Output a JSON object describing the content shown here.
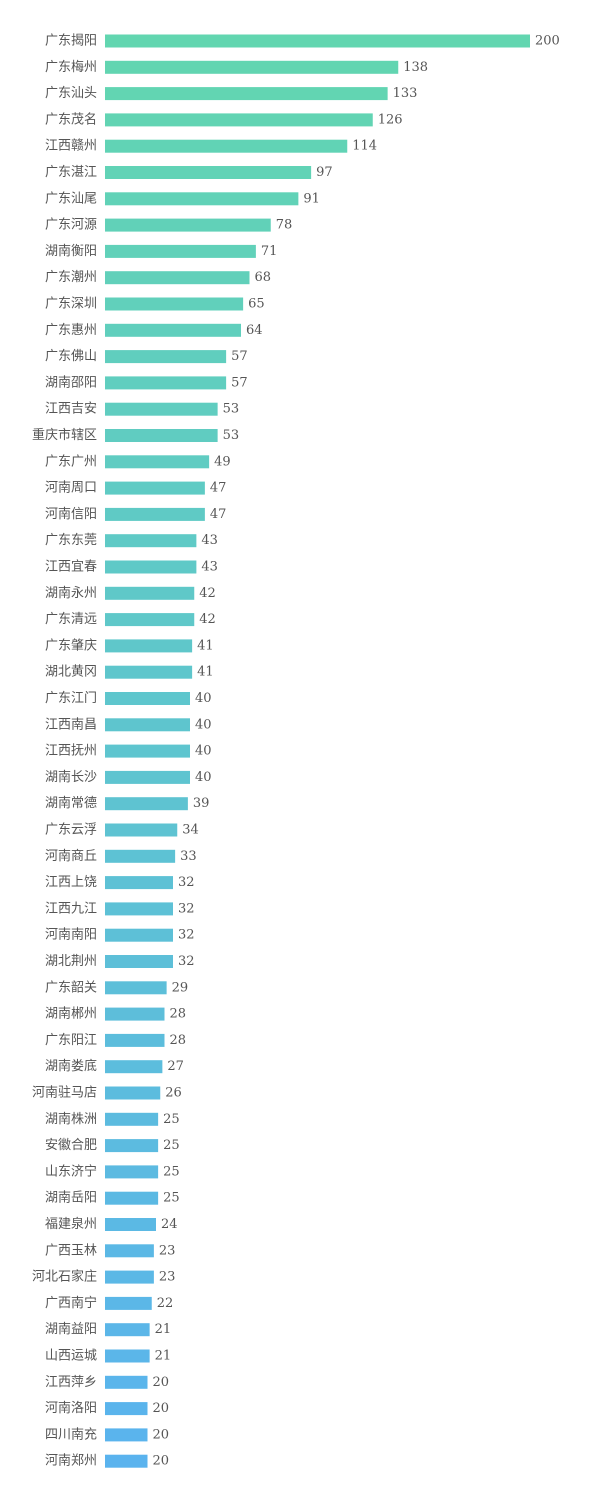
{
  "chart_data": {
    "type": "bar",
    "orientation": "horizontal",
    "title": "",
    "xlabel": "",
    "ylabel": "",
    "xlim": [
      0,
      200
    ],
    "grid": false,
    "legend": "none",
    "color_gradient": [
      "#62d6b0",
      "#5ab3ee"
    ],
    "categories": [
      "广东揭阳",
      "广东梅州",
      "广东汕头",
      "广东茂名",
      "江西赣州",
      "广东湛江",
      "广东汕尾",
      "广东河源",
      "湖南衡阳",
      "广东潮州",
      "广东深圳",
      "广东惠州",
      "广东佛山",
      "湖南邵阳",
      "江西吉安",
      "重庆市辖区",
      "广东广州",
      "河南周口",
      "河南信阳",
      "广东东莞",
      "江西宜春",
      "湖南永州",
      "广东清远",
      "广东肇庆",
      "湖北黄冈",
      "广东江门",
      "江西南昌",
      "江西抚州",
      "湖南长沙",
      "湖南常德",
      "广东云浮",
      "河南商丘",
      "江西上饶",
      "江西九江",
      "河南南阳",
      "湖北荆州",
      "广东韶关",
      "湖南郴州",
      "广东阳江",
      "湖南娄底",
      "河南驻马店",
      "湖南株洲",
      "安徽合肥",
      "山东济宁",
      "湖南岳阳",
      "福建泉州",
      "广西玉林",
      "河北石家庄",
      "广西南宁",
      "湖南益阳",
      "山西运城",
      "江西萍乡",
      "河南洛阳",
      "四川南充",
      "河南郑州"
    ],
    "values": [
      200,
      138,
      133,
      126,
      114,
      97,
      91,
      78,
      71,
      68,
      65,
      64,
      57,
      57,
      53,
      53,
      49,
      47,
      47,
      43,
      43,
      42,
      42,
      41,
      41,
      40,
      40,
      40,
      40,
      39,
      34,
      33,
      32,
      32,
      32,
      32,
      29,
      28,
      28,
      27,
      26,
      25,
      25,
      25,
      25,
      24,
      23,
      23,
      22,
      21,
      21,
      20,
      20,
      20,
      20
    ]
  }
}
